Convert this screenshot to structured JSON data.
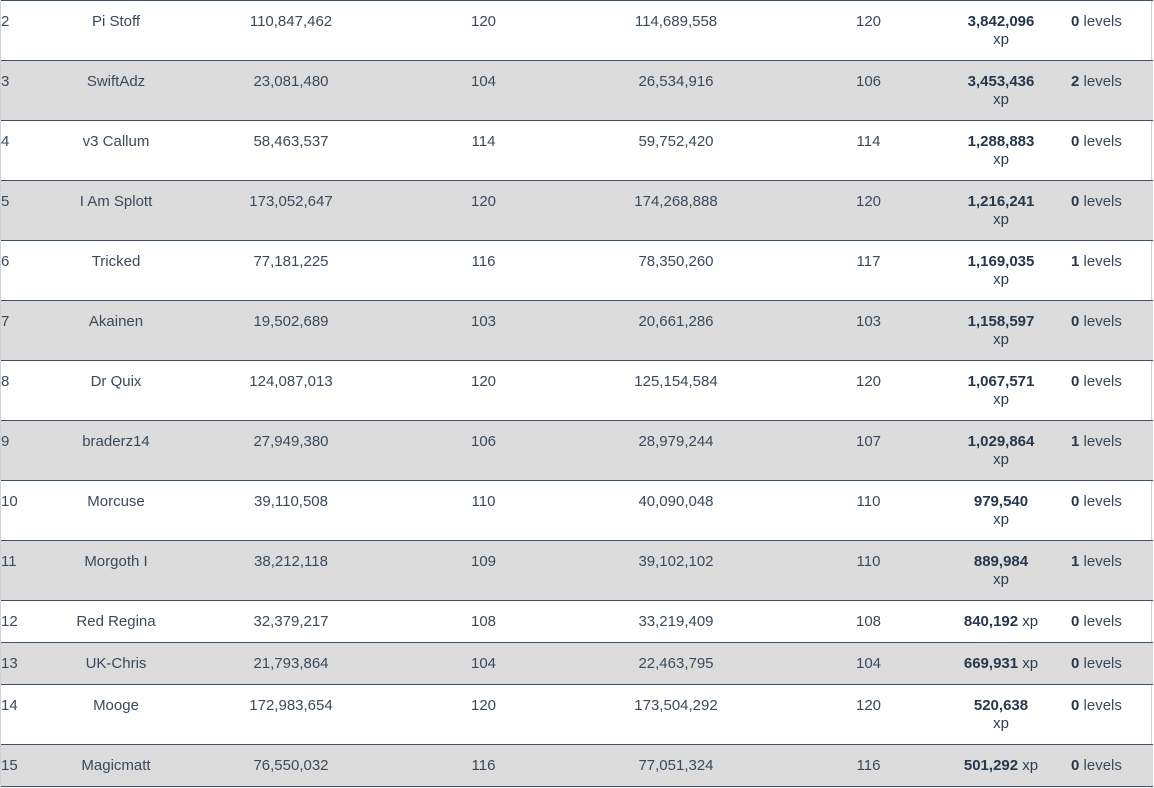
{
  "rows": [
    {
      "rank": "2",
      "name": "Pi Stoff",
      "start_xp": "110,847,462",
      "start_level": "120",
      "end_xp": "114,689,558",
      "end_level": "120",
      "gained": "3,842,096",
      "xp_label": "xp",
      "levels": "0",
      "levels_label": "levels",
      "wrap": true
    },
    {
      "rank": "3",
      "name": "SwiftAdz",
      "start_xp": "23,081,480",
      "start_level": "104",
      "end_xp": "26,534,916",
      "end_level": "106",
      "gained": "3,453,436",
      "xp_label": "xp",
      "levels": "2",
      "levels_label": "levels",
      "wrap": true
    },
    {
      "rank": "4",
      "name": "v3 Callum",
      "start_xp": "58,463,537",
      "start_level": "114",
      "end_xp": "59,752,420",
      "end_level": "114",
      "gained": "1,288,883",
      "xp_label": "xp",
      "levels": "0",
      "levels_label": "levels",
      "wrap": true
    },
    {
      "rank": "5",
      "name": "I Am Splott",
      "start_xp": "173,052,647",
      "start_level": "120",
      "end_xp": "174,268,888",
      "end_level": "120",
      "gained": "1,216,241",
      "xp_label": "xp",
      "levels": "0",
      "levels_label": "levels",
      "wrap": true
    },
    {
      "rank": "6",
      "name": "Tricked",
      "start_xp": "77,181,225",
      "start_level": "116",
      "end_xp": "78,350,260",
      "end_level": "117",
      "gained": "1,169,035",
      "xp_label": "xp",
      "levels": "1",
      "levels_label": "levels",
      "wrap": true
    },
    {
      "rank": "7",
      "name": "Akainen",
      "start_xp": "19,502,689",
      "start_level": "103",
      "end_xp": "20,661,286",
      "end_level": "103",
      "gained": "1,158,597",
      "xp_label": "xp",
      "levels": "0",
      "levels_label": "levels",
      "wrap": true
    },
    {
      "rank": "8",
      "name": "Dr Quix",
      "start_xp": "124,087,013",
      "start_level": "120",
      "end_xp": "125,154,584",
      "end_level": "120",
      "gained": "1,067,571",
      "xp_label": "xp",
      "levels": "0",
      "levels_label": "levels",
      "wrap": true
    },
    {
      "rank": "9",
      "name": "braderz14",
      "start_xp": "27,949,380",
      "start_level": "106",
      "end_xp": "28,979,244",
      "end_level": "107",
      "gained": "1,029,864",
      "xp_label": "xp",
      "levels": "1",
      "levels_label": "levels",
      "wrap": true
    },
    {
      "rank": "10",
      "name": "Morcuse",
      "start_xp": "39,110,508",
      "start_level": "110",
      "end_xp": "40,090,048",
      "end_level": "110",
      "gained": "979,540",
      "xp_label": "xp",
      "levels": "0",
      "levels_label": "levels",
      "wrap": true
    },
    {
      "rank": "11",
      "name": "Morgoth I",
      "start_xp": "38,212,118",
      "start_level": "109",
      "end_xp": "39,102,102",
      "end_level": "110",
      "gained": "889,984",
      "xp_label": "xp",
      "levels": "1",
      "levels_label": "levels",
      "wrap": true
    },
    {
      "rank": "12",
      "name": "Red Regina",
      "start_xp": "32,379,217",
      "start_level": "108",
      "end_xp": "33,219,409",
      "end_level": "108",
      "gained": "840,192",
      "xp_label": "xp",
      "levels": "0",
      "levels_label": "levels",
      "wrap": false
    },
    {
      "rank": "13",
      "name": "UK-Chris",
      "start_xp": "21,793,864",
      "start_level": "104",
      "end_xp": "22,463,795",
      "end_level": "104",
      "gained": "669,931",
      "xp_label": "xp",
      "levels": "0",
      "levels_label": "levels",
      "wrap": false
    },
    {
      "rank": "14",
      "name": "Mooge",
      "start_xp": "172,983,654",
      "start_level": "120",
      "end_xp": "173,504,292",
      "end_level": "120",
      "gained": "520,638",
      "xp_label": "xp",
      "levels": "0",
      "levels_label": "levels",
      "wrap": true
    },
    {
      "rank": "15",
      "name": "Magicmatt",
      "start_xp": "76,550,032",
      "start_level": "116",
      "end_xp": "77,051,324",
      "end_level": "116",
      "gained": "501,292",
      "xp_label": "xp",
      "levels": "0",
      "levels_label": "levels",
      "wrap": false
    }
  ]
}
